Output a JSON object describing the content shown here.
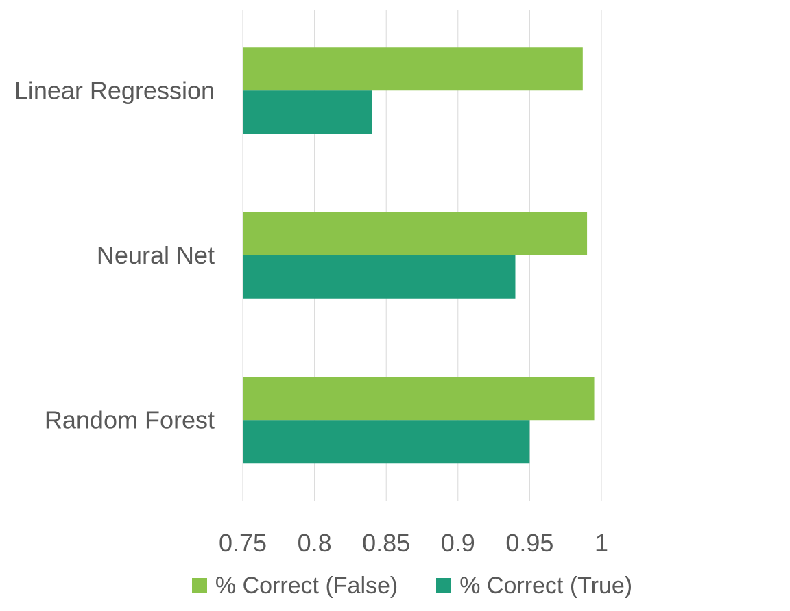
{
  "chart_data": {
    "type": "bar",
    "orientation": "horizontal",
    "categories": [
      "Linear Regression",
      "Neural Net",
      "Random Forest"
    ],
    "series": [
      {
        "name": "% Correct (False)",
        "color": "#8BC34A",
        "values": [
          0.987,
          0.99,
          0.995
        ]
      },
      {
        "name": "% Correct (True)",
        "color": "#1E9C7A",
        "values": [
          0.84,
          0.94,
          0.95
        ]
      }
    ],
    "x_ticks": [
      "0.75",
      "0.8",
      "0.85",
      "0.9",
      "0.95",
      "1"
    ],
    "xlim": [
      0.75,
      1.0
    ],
    "grid": "vertical",
    "legend": "bottom",
    "title": "",
    "xlabel": "",
    "ylabel": ""
  }
}
